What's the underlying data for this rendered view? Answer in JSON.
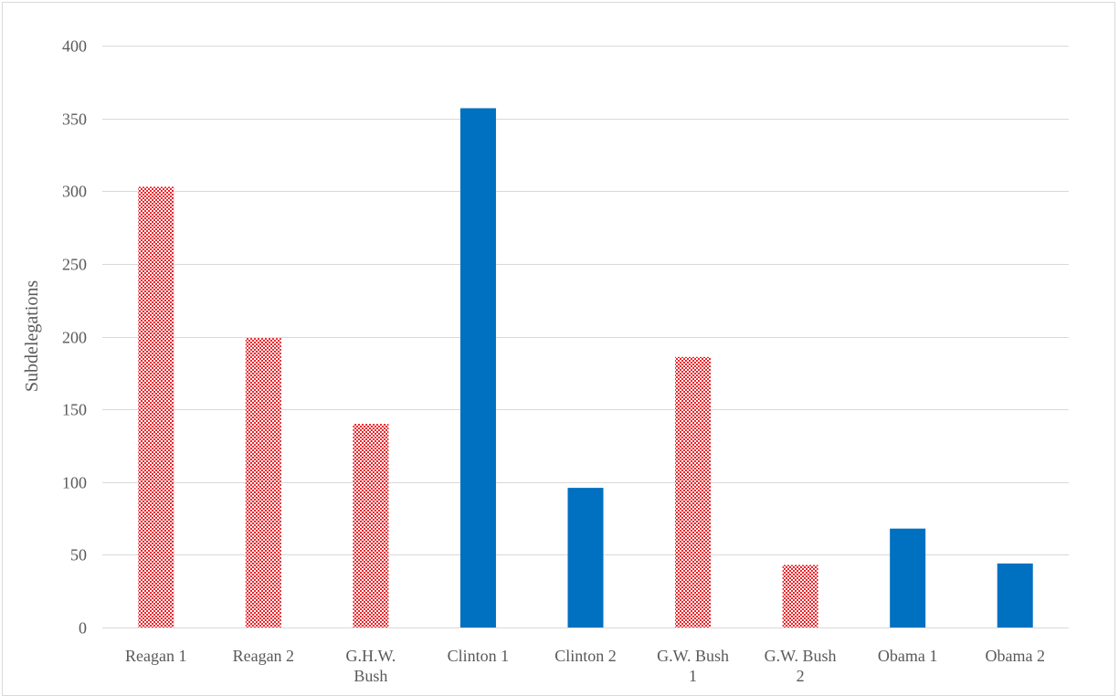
{
  "chart_data": {
    "type": "bar",
    "title": "",
    "xlabel": "",
    "ylabel": "Subdelegations",
    "ylim": [
      0,
      400
    ],
    "ytick_step": 50,
    "grid": true,
    "legend": "none",
    "categories": [
      [
        "Reagan 1"
      ],
      [
        "Reagan 2"
      ],
      [
        "G.H.W.",
        "Bush"
      ],
      [
        "Clinton 1"
      ],
      [
        "Clinton 2"
      ],
      [
        "G.W. Bush",
        "1"
      ],
      [
        "G.W. Bush",
        "2"
      ],
      [
        "Obama 1"
      ],
      [
        "Obama 2"
      ]
    ],
    "values": [
      303,
      199,
      140,
      357,
      96,
      186,
      43,
      68,
      44
    ],
    "bar_styles": [
      "checkered-red",
      "checkered-red",
      "checkered-red",
      "solid-blue",
      "solid-blue",
      "checkered-red",
      "checkered-red",
      "solid-blue",
      "solid-blue"
    ],
    "colors": {
      "red": "#e8262b",
      "red_light": "#ffffff",
      "blue": "#0070c0",
      "grid": "#d9d9d9",
      "text": "#595959"
    }
  }
}
